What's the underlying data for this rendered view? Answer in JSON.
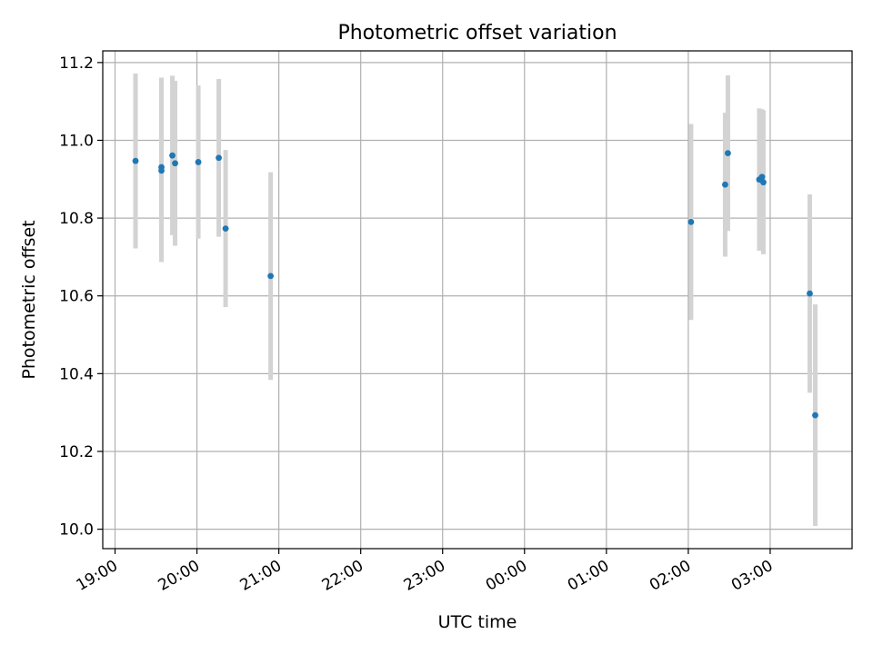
{
  "chart_data": {
    "type": "scatter",
    "title": "Photometric offset variation",
    "xlabel": "UTC time",
    "ylabel": "Photometric offset",
    "x_ticks": [
      "19:00",
      "20:00",
      "21:00",
      "22:00",
      "23:00",
      "00:00",
      "01:00",
      "02:00",
      "03:00"
    ],
    "x_tick_hours": [
      19,
      20,
      21,
      22,
      23,
      24,
      25,
      26,
      27
    ],
    "xlim": [
      18.85,
      28.0
    ],
    "y_ticks": [
      "10.0",
      "10.2",
      "10.4",
      "10.6",
      "10.8",
      "11.0",
      "11.2"
    ],
    "y_tick_values": [
      10.0,
      10.2,
      10.4,
      10.6,
      10.8,
      11.0,
      11.2
    ],
    "ylim": [
      9.95,
      11.23
    ],
    "grid": true,
    "marker_color": "#1f77b4",
    "errorbar_color": "#d3d3d3",
    "series": [
      {
        "points": [
          {
            "t": "19:15",
            "y": 10.947,
            "err": 0.225
          },
          {
            "t": "19:34",
            "y": 10.931,
            "err": 0.23
          },
          {
            "t": "19:34",
            "y": 10.922,
            "err": 0.235
          },
          {
            "t": "19:42",
            "y": 10.961,
            "err": 0.205
          },
          {
            "t": "19:44",
            "y": 10.941,
            "err": 0.212
          },
          {
            "t": "20:01",
            "y": 10.944,
            "err": 0.197
          },
          {
            "t": "20:16",
            "y": 10.955,
            "err": 0.203
          },
          {
            "t": "20:21",
            "y": 10.773,
            "err": 0.202
          },
          {
            "t": "20:54",
            "y": 10.651,
            "err": 0.267
          },
          {
            "t": "02:02",
            "y": 10.79,
            "err": 0.252
          },
          {
            "t": "02:27",
            "y": 10.886,
            "err": 0.185
          },
          {
            "t": "02:29",
            "y": 10.967,
            "err": 0.2
          },
          {
            "t": "02:52",
            "y": 10.899,
            "err": 0.183
          },
          {
            "t": "02:54",
            "y": 10.906,
            "err": 0.174
          },
          {
            "t": "02:55",
            "y": 10.892,
            "err": 0.185
          },
          {
            "t": "03:29",
            "y": 10.606,
            "err": 0.255
          },
          {
            "t": "03:33",
            "y": 10.293,
            "err": 0.285
          }
        ]
      }
    ]
  }
}
